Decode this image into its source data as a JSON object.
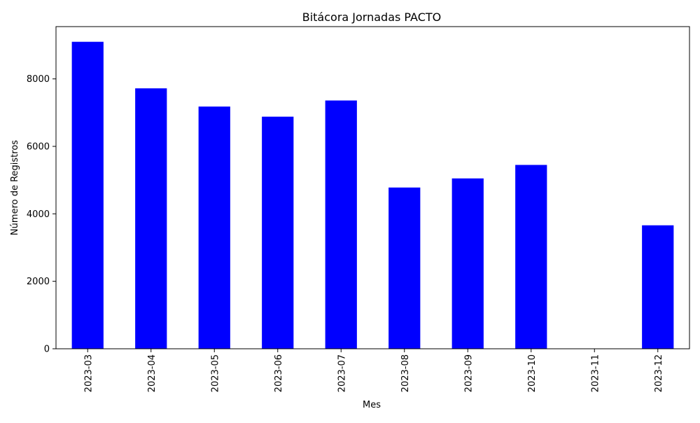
{
  "chart_data": {
    "type": "bar",
    "title": "Bitácora Jornadas PACTO",
    "xlabel": "Mes",
    "ylabel": "Número de Registros",
    "categories": [
      "2023-03",
      "2023-04",
      "2023-05",
      "2023-06",
      "2023-07",
      "2023-08",
      "2023-09",
      "2023-10",
      "2023-11",
      "2023-12"
    ],
    "values": [
      9100,
      7720,
      7180,
      6880,
      7360,
      4780,
      5050,
      5450,
      0,
      3660
    ],
    "ylim": [
      0,
      9550
    ],
    "yticks": [
      0,
      2000,
      4000,
      6000,
      8000
    ],
    "bar_color": "#0000ff",
    "grid": false,
    "legend": "none"
  }
}
